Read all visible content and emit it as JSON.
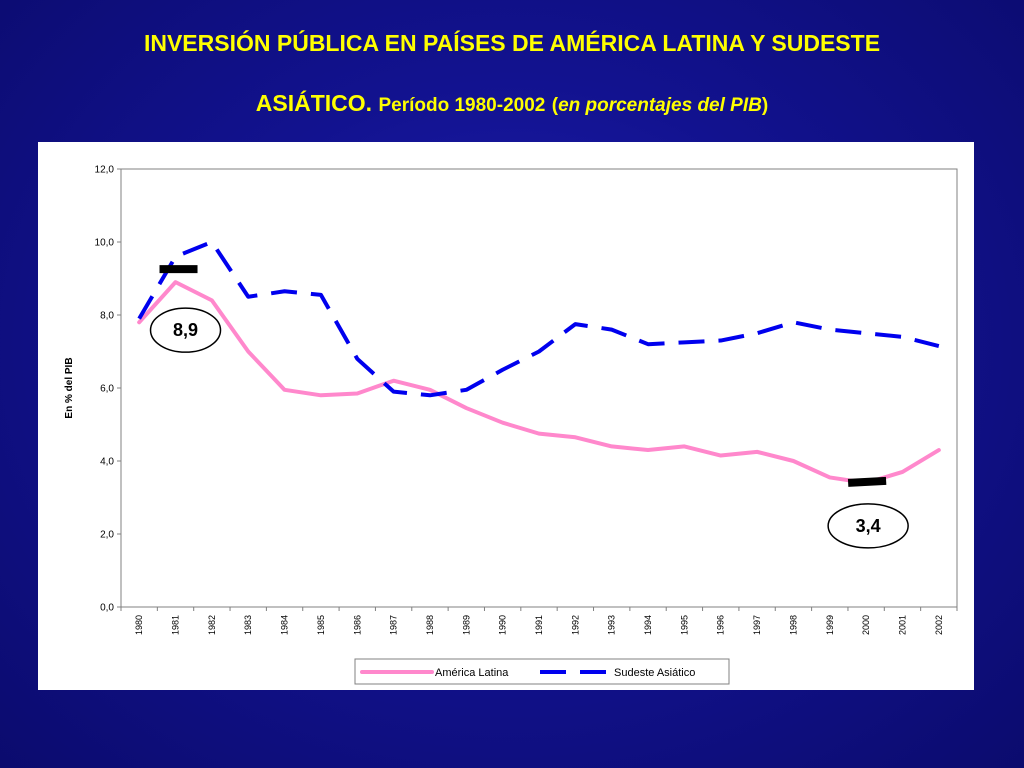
{
  "slide": {
    "title_line1": "INVERSIÓN PÚBLICA EN PAÍSES DE AMÉRICA LATINA Y SUDESTE",
    "title_line2_main": "ASIÁTICO.",
    "title_line2_period": "Período 1980-2002",
    "title_line2_open_paren": "(",
    "title_line2_italic": "en porcentajes del PIB",
    "title_line2_close_paren": ")",
    "title_color": "#ffff00",
    "background_color": "#12128f"
  },
  "chart_data": {
    "type": "line",
    "ylabel": "En % del PIB",
    "xlabel": "",
    "ylim": [
      0,
      12
    ],
    "yticks": [
      "0,0",
      "2,0",
      "4,0",
      "6,0",
      "8,0",
      "10,0",
      "12,0"
    ],
    "x": [
      "1980",
      "1981",
      "1982",
      "1983",
      "1984",
      "1985",
      "1986",
      "1987",
      "1988",
      "1989",
      "1990",
      "1991",
      "1992",
      "1993",
      "1994",
      "1995",
      "1996",
      "1997",
      "1998",
      "1999",
      "2000",
      "2001",
      "2002"
    ],
    "series": [
      {
        "name": "América Latina",
        "color": "#ff88cc",
        "dash": "solid",
        "values": [
          7.8,
          8.9,
          8.4,
          7.0,
          5.95,
          5.8,
          5.85,
          6.2,
          5.95,
          5.45,
          5.05,
          4.75,
          4.65,
          4.4,
          4.3,
          4.4,
          4.15,
          4.25,
          4.0,
          3.55,
          3.4,
          3.7,
          4.3
        ]
      },
      {
        "name": "Sudeste Asiático",
        "color": "#0000ee",
        "dash": "dashed",
        "values": [
          7.9,
          9.6,
          10.0,
          8.5,
          8.65,
          8.55,
          6.8,
          5.9,
          5.8,
          5.95,
          6.5,
          7.0,
          7.75,
          7.6,
          7.2,
          7.25,
          7.3,
          7.5,
          7.8,
          7.6,
          7.5,
          7.4,
          7.15
        ]
      }
    ],
    "annotations": [
      {
        "label": "8,9",
        "year": "1981",
        "value": 8.9
      },
      {
        "label": "3,4",
        "year": "2000",
        "value": 3.4
      }
    ],
    "grid": false,
    "legend": "bottom"
  }
}
